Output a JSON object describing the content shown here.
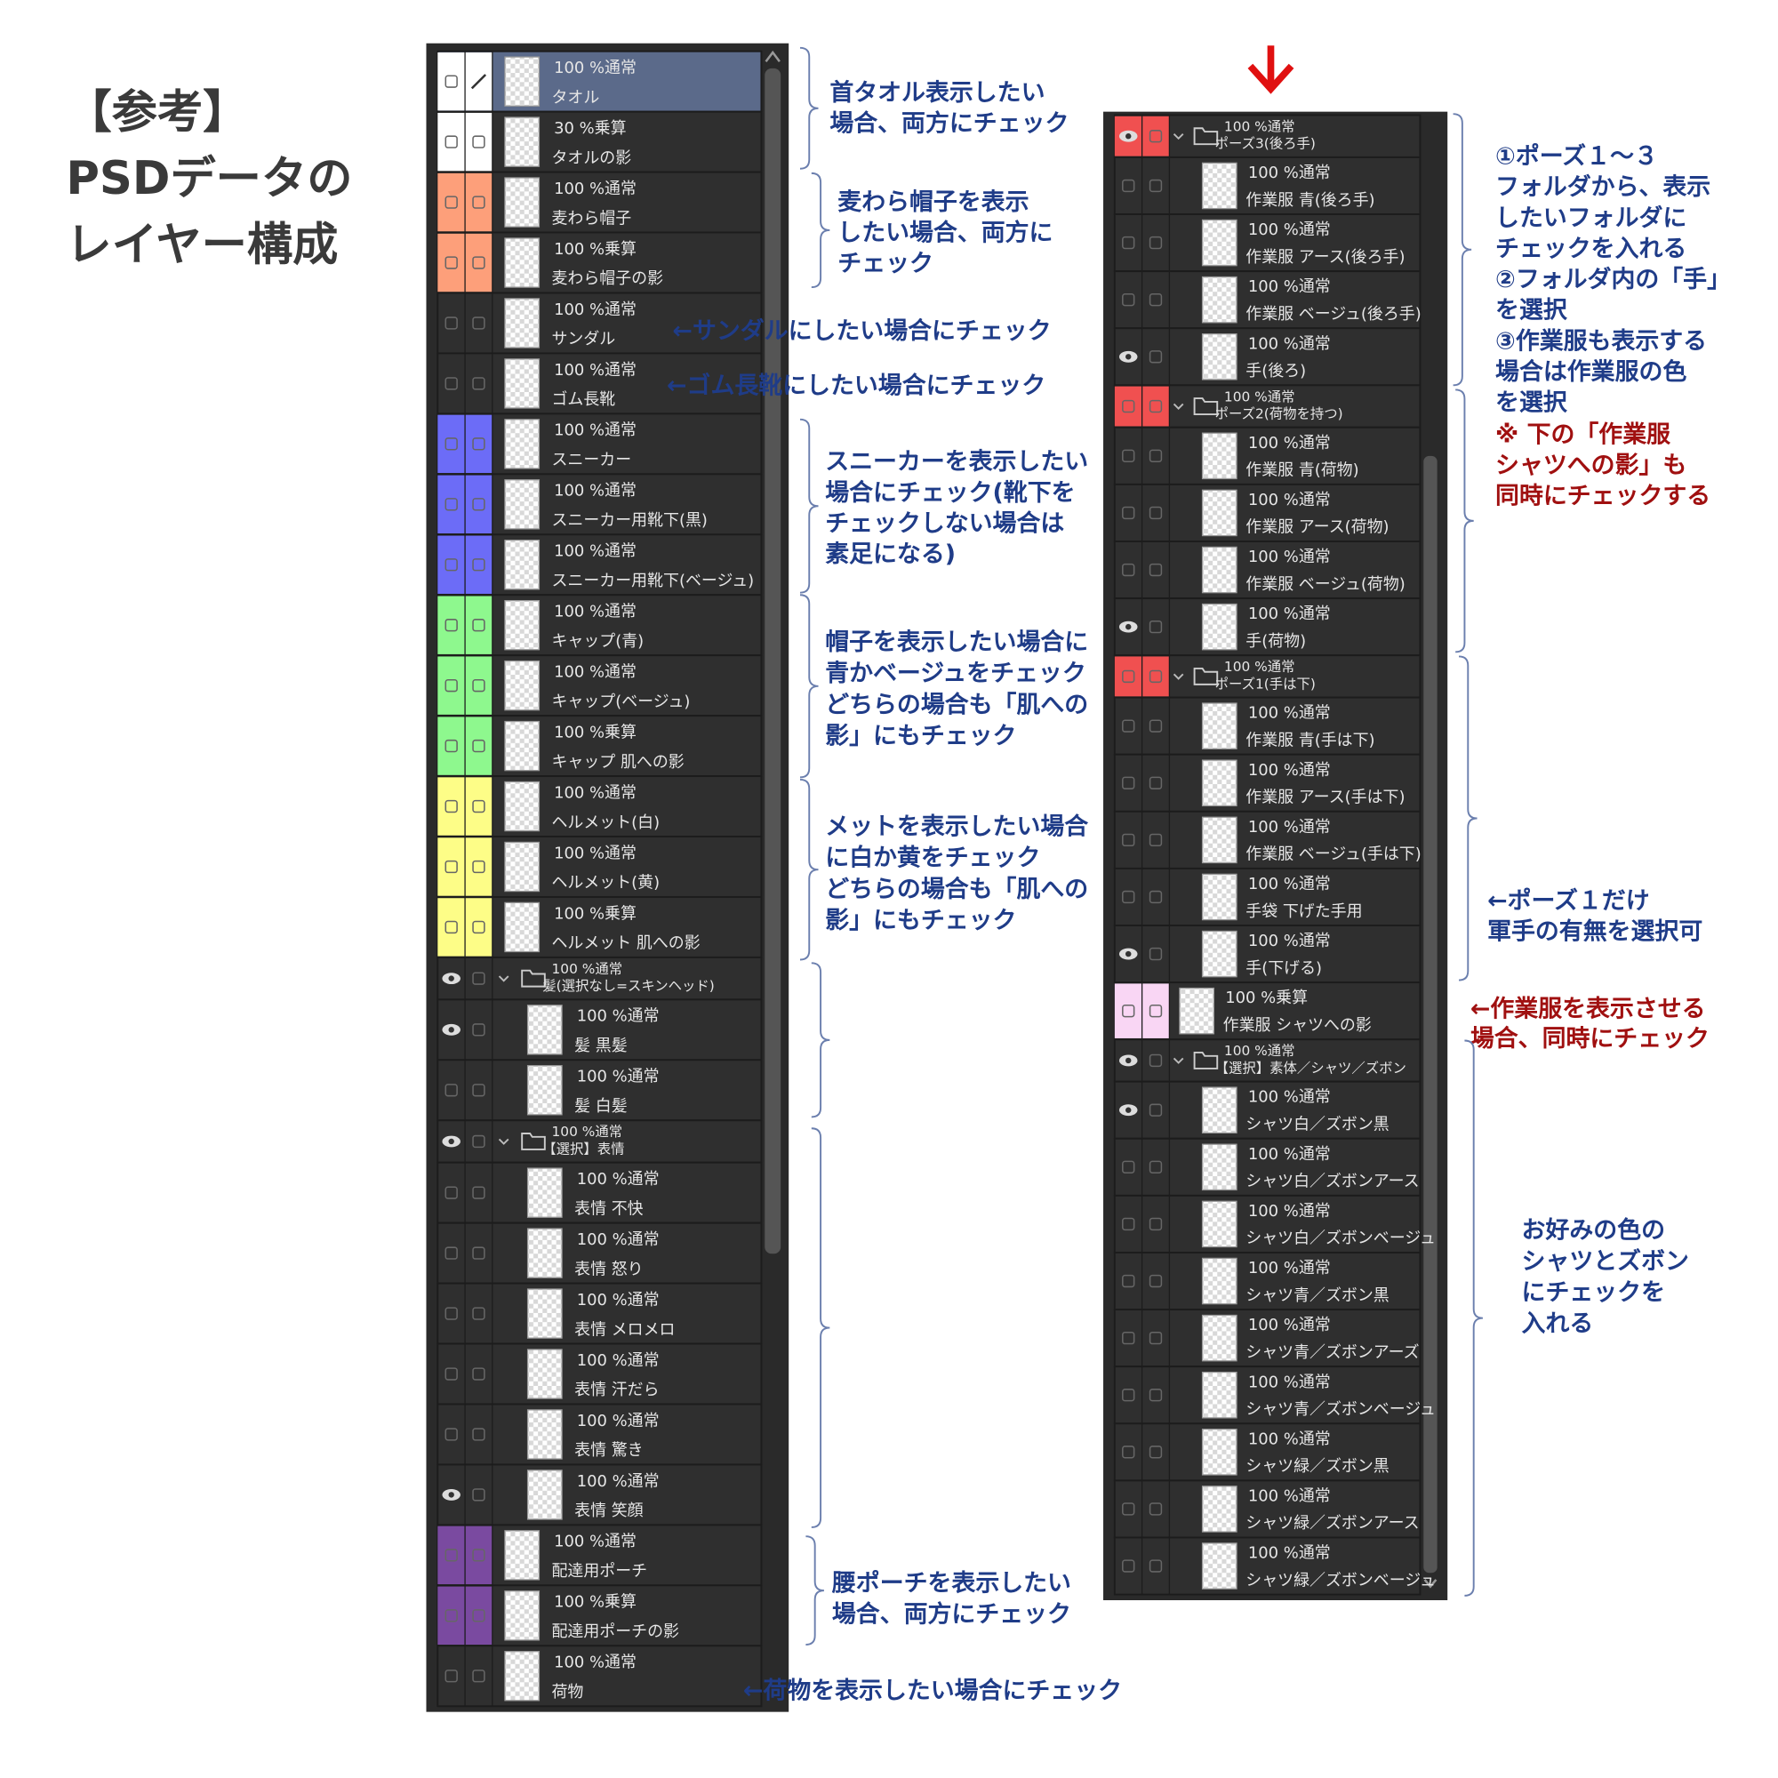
{
  "title": [
    "【参考】",
    "PSDデータの",
    "レイヤー構成"
  ],
  "left_panel": {
    "layers": [
      {
        "mode": "100 %通常",
        "name": "タオル",
        "swatch": "#ffffff",
        "selected": true
      },
      {
        "mode": "30 %乗算",
        "name": "タオルの影",
        "swatch": "#ffffff"
      },
      {
        "mode": "100 %通常",
        "name": "麦わら帽子",
        "swatch": "#fd9f7a"
      },
      {
        "mode": "100 %乗算",
        "name": "麦わら帽子の影",
        "swatch": "#fd9f7a"
      },
      {
        "mode": "100 %通常",
        "name": "サンダル"
      },
      {
        "mode": "100 %通常",
        "name": "ゴム長靴"
      },
      {
        "mode": "100 %通常",
        "name": "スニーカー",
        "swatch": "#6c6cf7"
      },
      {
        "mode": "100 %通常",
        "name": "スニーカー用靴下(黒)",
        "swatch": "#6c6cf7"
      },
      {
        "mode": "100 %通常",
        "name": "スニーカー用靴下(ベージュ)",
        "swatch": "#6c6cf7"
      },
      {
        "mode": "100 %通常",
        "name": "キャップ(青)",
        "swatch": "#8ef88e"
      },
      {
        "mode": "100 %通常",
        "name": "キャップ(ベージュ)",
        "swatch": "#8ef88e"
      },
      {
        "mode": "100 %乗算",
        "name": "キャップ 肌への影",
        "swatch": "#8ef88e"
      },
      {
        "mode": "100 %通常",
        "name": "ヘルメット(白)",
        "swatch": "#fdfd87"
      },
      {
        "mode": "100 %通常",
        "name": "ヘルメット(黄)",
        "swatch": "#fdfd87"
      },
      {
        "mode": "100 %乗算",
        "name": "ヘルメット 肌への影",
        "swatch": "#fdfd87"
      },
      {
        "mode": "100 %通常",
        "name": "髪(選択なし=スキンヘッド)",
        "folder": true,
        "eye": true
      },
      {
        "mode": "100 %通常",
        "name": "髪 黒髪",
        "child": true,
        "eye": true
      },
      {
        "mode": "100 %通常",
        "name": "髪 白髪",
        "child": true
      },
      {
        "mode": "100 %通常",
        "name": "【選択】表情",
        "folder": true,
        "eye": true
      },
      {
        "mode": "100 %通常",
        "name": "表情 不快",
        "child": true
      },
      {
        "mode": "100 %通常",
        "name": "表情 怒り",
        "child": true
      },
      {
        "mode": "100 %通常",
        "name": "表情 メロメロ",
        "child": true
      },
      {
        "mode": "100 %通常",
        "name": "表情 汗だら",
        "child": true
      },
      {
        "mode": "100 %通常",
        "name": "表情 驚き",
        "child": true
      },
      {
        "mode": "100 %通常",
        "name": "表情 笑顔",
        "child": true,
        "eye": true
      },
      {
        "mode": "100 %通常",
        "name": "配達用ポーチ",
        "swatch": "#7a4aa0"
      },
      {
        "mode": "100 %乗算",
        "name": "配達用ポーチの影",
        "swatch": "#7a4aa0"
      },
      {
        "mode": "100 %通常",
        "name": "荷物"
      }
    ]
  },
  "right_panel": {
    "layers": [
      {
        "mode": "100 %通常",
        "name": "ポーズ3(後ろ手)",
        "folder": true,
        "swatch": "#f05050",
        "eye": true
      },
      {
        "mode": "100 %通常",
        "name": "作業服 青(後ろ手)",
        "child": true
      },
      {
        "mode": "100 %通常",
        "name": "作業服 アース(後ろ手)",
        "child": true
      },
      {
        "mode": "100 %通常",
        "name": "作業服 ベージュ(後ろ手)",
        "child": true
      },
      {
        "mode": "100 %通常",
        "name": "手(後ろ)",
        "child": true,
        "eye": true
      },
      {
        "mode": "100 %通常",
        "name": "ポーズ2(荷物を持つ)",
        "folder": true,
        "swatch": "#f05050"
      },
      {
        "mode": "100 %通常",
        "name": "作業服 青(荷物)",
        "child": true
      },
      {
        "mode": "100 %通常",
        "name": "作業服 アース(荷物)",
        "child": true
      },
      {
        "mode": "100 %通常",
        "name": "作業服 ベージュ(荷物)",
        "child": true
      },
      {
        "mode": "100 %通常",
        "name": "手(荷物)",
        "child": true,
        "eye": true
      },
      {
        "mode": "100 %通常",
        "name": "ポーズ1(手は下)",
        "folder": true,
        "swatch": "#f05050"
      },
      {
        "mode": "100 %通常",
        "name": "作業服 青(手は下)",
        "child": true
      },
      {
        "mode": "100 %通常",
        "name": "作業服 アース(手は下)",
        "child": true
      },
      {
        "mode": "100 %通常",
        "name": "作業服 ベージュ(手は下)",
        "child": true
      },
      {
        "mode": "100 %通常",
        "name": "手袋 下げた手用",
        "child": true
      },
      {
        "mode": "100 %通常",
        "name": "手(下げる)",
        "child": true,
        "eye": true
      },
      {
        "mode": "100 %乗算",
        "name": "作業服 シャツへの影",
        "swatch": "#f9d6f4"
      },
      {
        "mode": "100 %通常",
        "name": "【選択】素体／シャツ／ズボン",
        "folder": true,
        "eye": true
      },
      {
        "mode": "100 %通常",
        "name": "シャツ白／ズボン黒",
        "child": true,
        "eye": true
      },
      {
        "mode": "100 %通常",
        "name": "シャツ白／ズボンアース",
        "child": true
      },
      {
        "mode": "100 %通常",
        "name": "シャツ白／ズボンベージュ",
        "child": true
      },
      {
        "mode": "100 %通常",
        "name": "シャツ青／ズボン黒",
        "child": true
      },
      {
        "mode": "100 %通常",
        "name": "シャツ青／ズボンアーズ",
        "child": true
      },
      {
        "mode": "100 %通常",
        "name": "シャツ青／ズボンベージュ",
        "child": true
      },
      {
        "mode": "100 %通常",
        "name": "シャツ緑／ズボン黒",
        "child": true
      },
      {
        "mode": "100 %通常",
        "name": "シャツ緑／ズボンアース",
        "child": true
      },
      {
        "mode": "100 %通常",
        "name": "シャツ緑／ズボンベージュ",
        "child": true
      }
    ]
  },
  "notes": [
    {
      "color": "#1f3c88",
      "lines": [
        "首タオル表示したい",
        "場合、両方にチェック"
      ]
    },
    {
      "color": "#1f3c88",
      "lines": [
        "麦わら帽子を表示",
        "したい場合、両方に",
        "チェック"
      ]
    },
    {
      "color": "#1f3c88",
      "lines": [
        "←サンダルにしたい場合にチェック"
      ]
    },
    {
      "color": "#1f3c88",
      "lines": [
        "←ゴム長靴にしたい場合にチェック"
      ]
    },
    {
      "color": "#1f3c88",
      "lines": [
        "スニーカーを表示したい",
        "場合にチェック(靴下を",
        "チェックしない場合は",
        "素足になる)"
      ]
    },
    {
      "color": "#1f3c88",
      "lines": [
        "帽子を表示したい場合に",
        "青かベージュをチェック",
        "どちらの場合も「肌への",
        "影」にもチェック"
      ]
    },
    {
      "color": "#1f3c88",
      "lines": [
        "メットを表示したい場合",
        "に白か黄をチェック",
        "どちらの場合も「肌への",
        "影」にもチェック"
      ]
    },
    {
      "color": "#1f3c88",
      "lines": [
        "腰ポーチを表示したい",
        "場合、両方にチェック"
      ]
    },
    {
      "color": "#1f3c88",
      "lines": [
        "←荷物を表示したい場合にチェック"
      ]
    },
    {
      "color": "#1f3c88",
      "lines": [
        "①ポーズ１〜３",
        "フォルダから、表示",
        "したいフォルダに",
        "チェックを入れる",
        "②フォルダ内の「手」",
        "を選択",
        "③作業服も表示する",
        "場合は作業服の色",
        "を選択"
      ]
    },
    {
      "color": "#a01010",
      "lines": [
        "※ 下の「作業服",
        "シャツへの影」も",
        "同時にチェックする"
      ]
    },
    {
      "color": "#1f3c88",
      "lines": [
        "←ポーズ１だけ",
        "軍手の有無を選択可"
      ]
    },
    {
      "color": "#a01010",
      "lines": [
        "←作業服を表示させる",
        "場合、同時にチェック"
      ]
    },
    {
      "color": "#1f3c88",
      "lines": [
        "お好みの色の",
        "シャツとズボン",
        "にチェックを",
        "入れる"
      ]
    }
  ]
}
